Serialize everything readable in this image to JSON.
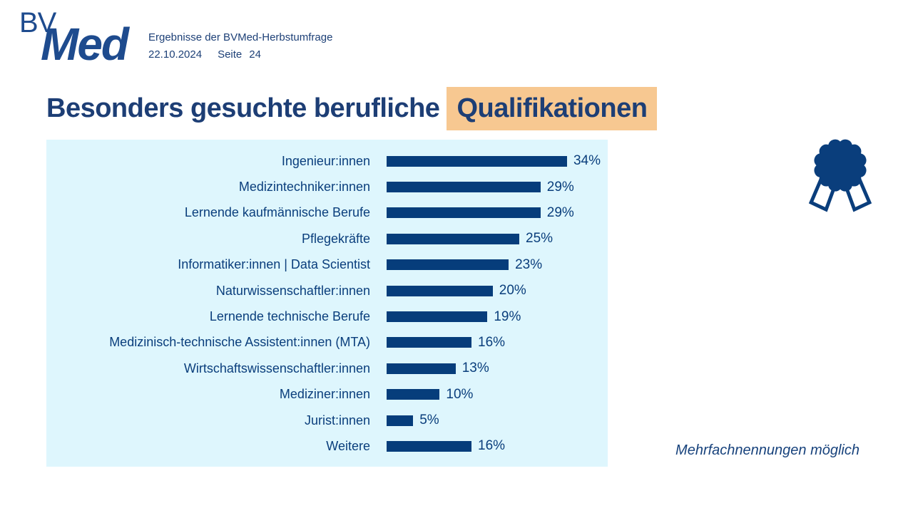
{
  "header": {
    "logo_bv": "BV",
    "logo_med": "Med",
    "subtitle": "Ergebnisse der BVMed-Herbstumfrage",
    "date": "22.10.2024",
    "page_label": "Seite",
    "page_number": "24"
  },
  "title": {
    "prefix": "Besonders gesuchte berufliche",
    "highlight": "Qualifikationen",
    "highlight_color": "#f7c891"
  },
  "chart_data": {
    "type": "bar",
    "orientation": "horizontal",
    "title": "Besonders gesuchte berufliche Qualifikationen",
    "categories": [
      "Ingenieur:innen",
      "Medizintechniker:innen",
      "Lernende kaufmännische Berufe",
      "Pflegekräfte",
      "Informatiker:innen | Data Scientist",
      "Naturwissenschaftler:innen",
      "Lernende technische Berufe",
      "Medizinisch-technische Assistent:innen (MTA)",
      "Wirtschaftswissenschaftler:innen",
      "Mediziner:innen",
      "Jurist:innen",
      "Weitere"
    ],
    "values": [
      34,
      29,
      29,
      25,
      23,
      20,
      19,
      16,
      13,
      10,
      5,
      16
    ],
    "value_suffix": "%",
    "xlim": [
      0,
      40
    ],
    "grid": false,
    "legend": false,
    "bar_color": "#063d7b",
    "panel_background": "#def6fd",
    "label_color": "#0a3e7c"
  },
  "note": "Mehrfachnennungen möglich",
  "icons": {
    "badge": "award-ribbon-icon"
  },
  "colors": {
    "logo_blue": "#1e4b8e",
    "navy": "#0a3e7c",
    "title_navy": "#1d3e75",
    "highlight_orange": "#f7c891",
    "panel_light_blue": "#def6fd"
  }
}
